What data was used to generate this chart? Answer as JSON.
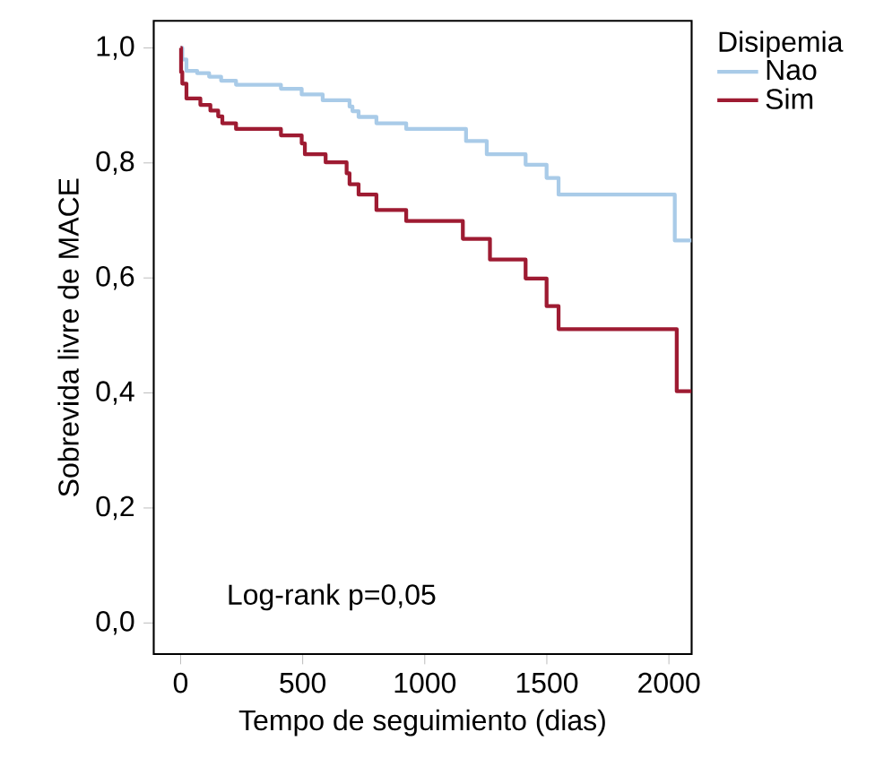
{
  "chart_data": {
    "type": "step",
    "xlabel": "Tempo de seguimiento (dias)",
    "ylabel": "Sobrevida livre de MACE",
    "legend_title": "Disipemia",
    "xlim": [
      -110,
      2093
    ],
    "ylim": [
      -0.054,
      1.047
    ],
    "xticks": [
      0,
      500,
      1000,
      1500,
      2000
    ],
    "yticks": [
      {
        "value": 0,
        "label": "0,0"
      },
      {
        "value": 0.2,
        "label": "0,2"
      },
      {
        "value": 0.4,
        "label": "0,4"
      },
      {
        "value": 0.6,
        "label": "0,6"
      },
      {
        "value": 0.8,
        "label": "0,8"
      },
      {
        "value": 1,
        "label": "1,0"
      }
    ],
    "series": [
      {
        "name": "Nao",
        "color": "#a9cbe8",
        "x": [
          0,
          7,
          24,
          68,
          117,
          166,
          227,
          411,
          496,
          582,
          692,
          704,
          729,
          802,
          924,
          1169,
          1254,
          1413,
          1499,
          1548,
          2024,
          2093
        ],
        "values": [
          1.0,
          0.98,
          0.96,
          0.956,
          0.95,
          0.943,
          0.936,
          0.929,
          0.919,
          0.909,
          0.898,
          0.89,
          0.88,
          0.869,
          0.859,
          0.838,
          0.815,
          0.797,
          0.774,
          0.745,
          0.665,
          0.665
        ]
      },
      {
        "name": "Sim",
        "color": "#9e1b32",
        "x": [
          0,
          2,
          7,
          24,
          81,
          122,
          154,
          171,
          227,
          411,
          496,
          509,
          594,
          680,
          692,
          729,
          802,
          924,
          1156,
          1267,
          1413,
          1499,
          1548,
          2032,
          2093
        ],
        "values": [
          1.0,
          0.958,
          0.938,
          0.912,
          0.901,
          0.891,
          0.881,
          0.869,
          0.859,
          0.848,
          0.834,
          0.815,
          0.801,
          0.782,
          0.763,
          0.745,
          0.718,
          0.699,
          0.668,
          0.632,
          0.599,
          0.551,
          0.511,
          0.403,
          0.403
        ]
      }
    ],
    "annotations": [
      "Log-rank p=0,05"
    ],
    "legend": "top right",
    "marker": "none",
    "line_style": "solid",
    "grid": false
  }
}
